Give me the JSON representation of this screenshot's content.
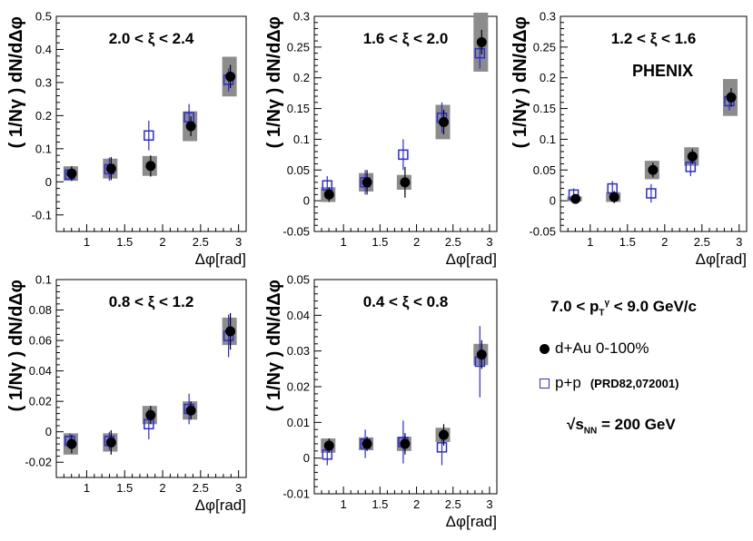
{
  "chart_data": [
    {
      "type": "scatter",
      "title": "2.0 < ξ < 2.4",
      "annotation": "",
      "xlabel": "Δφ[rad]",
      "ylabel": "( 1/Nγ ) dN/dΔφ",
      "xlim": [
        0.6,
        3.1
      ],
      "ylim": [
        -0.15,
        0.5
      ],
      "xticks": [
        "1",
        "1.5",
        "2",
        "2.5",
        "3"
      ],
      "yticks": [
        "-0.1",
        "0",
        "0.1",
        "0.2",
        "0.3",
        "0.4",
        "0.5"
      ],
      "series": [
        {
          "name": "d+Au 0-100%",
          "x": [
            0.79,
            1.31,
            1.83,
            2.36,
            2.88
          ],
          "y": [
            0.025,
            0.04,
            0.048,
            0.168,
            0.318
          ],
          "stat_err": [
            0.022,
            0.035,
            0.032,
            0.03,
            0.035
          ],
          "sys_err": [
            0.022,
            0.03,
            0.03,
            0.045,
            0.06
          ]
        },
        {
          "name": "p+p (PRD82,072001)",
          "x": [
            0.79,
            1.31,
            1.83,
            2.36,
            2.88
          ],
          "y": [
            0.022,
            0.038,
            0.14,
            0.195,
            0.308
          ],
          "stat_err": [
            0.015,
            0.035,
            0.045,
            0.04,
            0.035
          ]
        }
      ]
    },
    {
      "type": "scatter",
      "title": "1.6 < ξ < 2.0",
      "annotation": "",
      "xlabel": "Δφ[rad]",
      "ylabel": "( 1/Nγ ) dN/dΔφ",
      "xlim": [
        0.6,
        3.1
      ],
      "ylim": [
        -0.05,
        0.3
      ],
      "xticks": [
        "1",
        "1.5",
        "2",
        "2.5",
        "3"
      ],
      "yticks": [
        "-0.05",
        "0",
        "0.05",
        "0.1",
        "0.15",
        "0.2",
        "0.25",
        "0.3"
      ],
      "series": [
        {
          "name": "d+Au 0-100%",
          "x": [
            0.79,
            1.31,
            1.83,
            2.36,
            2.88
          ],
          "y": [
            0.01,
            0.03,
            0.03,
            0.128,
            0.258
          ],
          "stat_err": [
            0.012,
            0.02,
            0.025,
            0.02,
            0.02
          ],
          "sys_err": [
            0.012,
            0.015,
            0.012,
            0.028,
            0.048
          ]
        },
        {
          "name": "p+p (PRD82,072001)",
          "x": [
            0.79,
            1.31,
            1.83,
            2.36,
            2.88
          ],
          "y": [
            0.025,
            0.03,
            0.075,
            0.135,
            0.24
          ],
          "stat_err": [
            0.015,
            0.02,
            0.025,
            0.025,
            0.025
          ]
        }
      ]
    },
    {
      "type": "scatter",
      "title": "1.2 < ξ < 1.6",
      "annotation": "PHENIX",
      "xlabel": "Δφ[rad]",
      "ylabel": "( 1/Nγ ) dN/dΔφ",
      "xlim": [
        0.6,
        3.1
      ],
      "ylim": [
        -0.05,
        0.3
      ],
      "xticks": [
        "1",
        "1.5",
        "2",
        "2.5",
        "3"
      ],
      "yticks": [
        "-0.05",
        "0",
        "0.05",
        "0.1",
        "0.15",
        "0.2",
        "0.25",
        "0.3"
      ],
      "series": [
        {
          "name": "d+Au 0-100%",
          "x": [
            0.79,
            1.31,
            1.83,
            2.36,
            2.88
          ],
          "y": [
            0.003,
            0.006,
            0.05,
            0.072,
            0.168
          ],
          "stat_err": [
            0.006,
            0.01,
            0.012,
            0.012,
            0.015
          ],
          "sys_err": [
            0.004,
            0.008,
            0.015,
            0.015,
            0.03
          ]
        },
        {
          "name": "p+p (PRD82,072001)",
          "x": [
            0.79,
            1.31,
            1.83,
            2.36,
            2.88
          ],
          "y": [
            0.01,
            0.02,
            0.012,
            0.055,
            0.162
          ],
          "stat_err": [
            0.01,
            0.012,
            0.015,
            0.015,
            0.015
          ]
        }
      ]
    },
    {
      "type": "scatter",
      "title": "0.8 < ξ < 1.2",
      "annotation": "",
      "xlabel": "Δφ[rad]",
      "ylabel": "( 1/Nγ ) dN/dΔφ",
      "xlim": [
        0.6,
        3.1
      ],
      "ylim": [
        -0.03,
        0.1
      ],
      "xticks": [
        "1",
        "1.5",
        "2",
        "2.5",
        "3"
      ],
      "yticks": [
        "-0.02",
        "0",
        "0.02",
        "0.04",
        "0.06",
        "0.08",
        "0.1"
      ],
      "series": [
        {
          "name": "d+Au 0-100%",
          "x": [
            0.79,
            1.31,
            1.83,
            2.36,
            2.88
          ],
          "y": [
            -0.008,
            -0.007,
            0.011,
            0.014,
            0.066
          ],
          "stat_err": [
            0.006,
            0.008,
            0.006,
            0.006,
            0.012
          ],
          "sys_err": [
            0.007,
            0.006,
            0.006,
            0.006,
            0.009
          ]
        },
        {
          "name": "p+p (PRD82,072001)",
          "x": [
            0.79,
            1.31,
            1.83,
            2.36,
            2.88
          ],
          "y": [
            -0.006,
            -0.006,
            0.005,
            0.015,
            0.063
          ],
          "stat_err": [
            0.005,
            0.006,
            0.01,
            0.01,
            0.014
          ]
        }
      ]
    },
    {
      "type": "scatter",
      "title": "0.4 < ξ < 0.8",
      "annotation": "",
      "xlabel": "Δφ[rad]",
      "ylabel": "( 1/Nγ ) dN/dΔφ",
      "xlim": [
        0.6,
        3.1
      ],
      "ylim": [
        -0.01,
        0.05
      ],
      "xticks": [
        "1",
        "1.5",
        "2",
        "2.5",
        "3"
      ],
      "yticks": [
        "-0.01",
        "0",
        "0.01",
        "0.02",
        "0.03",
        "0.04",
        "0.05"
      ],
      "series": [
        {
          "name": "d+Au 0-100%",
          "x": [
            0.79,
            1.31,
            1.83,
            2.36,
            2.88
          ],
          "y": [
            0.0035,
            0.004,
            0.004,
            0.0065,
            0.029
          ],
          "stat_err": [
            0.002,
            0.002,
            0.003,
            0.003,
            0.004
          ],
          "sys_err": [
            0.002,
            0.0018,
            0.002,
            0.002,
            0.003
          ]
        },
        {
          "name": "p+p (PRD82,072001)",
          "x": [
            0.79,
            1.31,
            1.83,
            2.36,
            2.88
          ],
          "y": [
            0.001,
            0.004,
            0.0045,
            0.003,
            0.027
          ],
          "stat_err": [
            0.003,
            0.004,
            0.006,
            0.005,
            0.01
          ]
        }
      ]
    }
  ],
  "legend": {
    "pt_range": "7.0 < pTγ < 9.0 GeV/c",
    "pt_prefix": "7.0 < p",
    "pt_sub": "T",
    "pt_sup": "γ",
    "pt_suffix": " < 9.0 GeV/c",
    "dau_label": "d+Au 0-100%",
    "pp_label": "p+p",
    "pp_ref": "(PRD82,072001)",
    "energy_label": "√sNN = 200 GeV",
    "energy_root": "√s",
    "energy_sub": "NN",
    "energy_suffix": " = 200 GeV"
  },
  "colors": {
    "dau": "#000000",
    "pp": "#2a2adf",
    "sys_band": "#8c8c8c",
    "axis": "#000000"
  }
}
